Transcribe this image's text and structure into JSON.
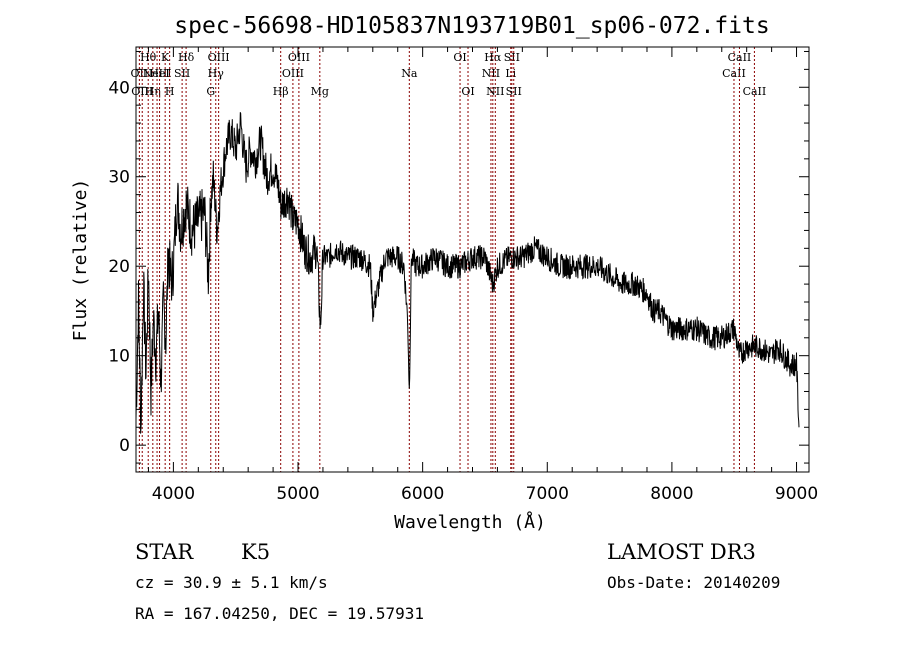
{
  "chart_data": {
    "type": "line",
    "title": "spec-56698-HD105837N193719B01_sp06-072.fits",
    "xlabel": "Wavelength (Å)",
    "ylabel": "Flux (relative)",
    "xlim": [
      3700,
      9100
    ],
    "ylim": [
      -3,
      44.5
    ],
    "xticks": [
      4000,
      5000,
      6000,
      7000,
      8000,
      9000
    ],
    "yticks": [
      0,
      10,
      20,
      30,
      40
    ],
    "grid": false,
    "series": [
      {
        "name": "flux",
        "x": [
          3700,
          3720,
          3740,
          3760,
          3780,
          3800,
          3820,
          3840,
          3860,
          3880,
          3900,
          3920,
          3940,
          3960,
          3980,
          4000,
          4030,
          4060,
          4100,
          4150,
          4200,
          4250,
          4280,
          4300,
          4320,
          4350,
          4380,
          4420,
          4460,
          4500,
          4540,
          4580,
          4620,
          4660,
          4700,
          4750,
          4800,
          4840,
          4860,
          4880,
          4920,
          4960,
          5000,
          5050,
          5100,
          5150,
          5180,
          5200,
          5250,
          5300,
          5400,
          5500,
          5580,
          5600,
          5700,
          5800,
          5850,
          5880,
          5893,
          5910,
          5950,
          6000,
          6100,
          6200,
          6300,
          6400,
          6500,
          6563,
          6600,
          6700,
          6800,
          6900,
          7000,
          7100,
          7200,
          7300,
          7400,
          7500,
          7600,
          7700,
          7800,
          7850,
          7900,
          8000,
          8100,
          8200,
          8300,
          8400,
          8500,
          8542,
          8600,
          8662,
          8700,
          8800,
          8850,
          8900,
          8950,
          9000,
          9020
        ],
        "values": [
          3,
          16,
          2,
          18,
          8,
          20,
          6,
          14,
          10,
          15,
          7,
          16,
          12,
          22,
          18,
          20,
          28,
          24,
          27,
          24,
          25,
          26,
          19,
          27,
          30,
          24,
          29,
          33,
          35,
          33,
          36,
          31,
          33,
          32,
          34,
          30,
          31,
          29,
          27,
          27,
          28,
          25,
          25,
          22,
          21,
          22,
          13,
          21,
          21,
          22,
          21,
          21,
          20,
          15,
          21,
          21,
          20,
          14,
          6,
          21,
          20,
          20,
          21,
          20,
          20,
          21,
          21,
          18,
          20,
          21,
          21,
          22,
          21,
          20,
          20,
          20,
          20,
          19,
          18,
          18,
          17,
          15,
          15,
          13,
          13,
          13,
          12,
          12,
          13,
          10,
          11,
          11,
          11,
          10,
          11,
          10,
          9,
          9,
          2
        ]
      }
    ],
    "lines": [
      {
        "x": 3727,
        "label": "OII",
        "row": 2
      },
      {
        "x": 3750,
        "label": "OIII",
        "row": 3
      },
      {
        "x": 3798,
        "label": "Hθ",
        "row": 1
      },
      {
        "x": 3835,
        "label": "Hη",
        "row": 3
      },
      {
        "x": 3869,
        "label": "NeIII",
        "row": 2
      },
      {
        "x": 3889,
        "label": "HeI",
        "row": 2
      },
      {
        "x": 3934,
        "label": "K",
        "row": 1
      },
      {
        "x": 3970,
        "label": "H",
        "row": 3
      },
      {
        "x": 4070,
        "label": "SII",
        "row": 2
      },
      {
        "x": 4102,
        "label": "Hδ",
        "row": 1
      },
      {
        "x": 4300,
        "label": "G",
        "row": 3
      },
      {
        "x": 4340,
        "label": "Hγ",
        "row": 2
      },
      {
        "x": 4363,
        "label": "OIII",
        "row": 1
      },
      {
        "x": 4861,
        "label": "Hβ",
        "row": 3
      },
      {
        "x": 4959,
        "label": "OIII",
        "row": 2
      },
      {
        "x": 5007,
        "label": "OIII",
        "row": 1
      },
      {
        "x": 5175,
        "label": "Mg",
        "row": 3
      },
      {
        "x": 5893,
        "label": "Na",
        "row": 2
      },
      {
        "x": 6300,
        "label": "OI",
        "row": 1
      },
      {
        "x": 6364,
        "label": "OI",
        "row": 3
      },
      {
        "x": 6548,
        "label": "NII",
        "row": 2
      },
      {
        "x": 6563,
        "label": "Hα",
        "row": 1
      },
      {
        "x": 6583,
        "label": "NII",
        "row": 3
      },
      {
        "x": 6707,
        "label": "Li",
        "row": 2
      },
      {
        "x": 6716,
        "label": "SII",
        "row": 1
      },
      {
        "x": 6731,
        "label": "SII",
        "row": 3
      },
      {
        "x": 8498,
        "label": "CaII",
        "row": 2
      },
      {
        "x": 8542,
        "label": "CaII",
        "row": 1
      },
      {
        "x": 8662,
        "label": "CaII",
        "row": 3
      }
    ]
  },
  "info": {
    "object_class": "STAR",
    "subclass": "K5",
    "survey": "LAMOST DR3",
    "cz": "cz = 30.9 ± 5.1 km/s",
    "obs_date": "Obs-Date: 20140209",
    "coords": "RA = 167.04250, DEC =  19.57931"
  },
  "colors": {
    "axes": "#000000",
    "spectrum": "#000000",
    "line_markers": "#8b0000",
    "background": "#ffffff"
  }
}
